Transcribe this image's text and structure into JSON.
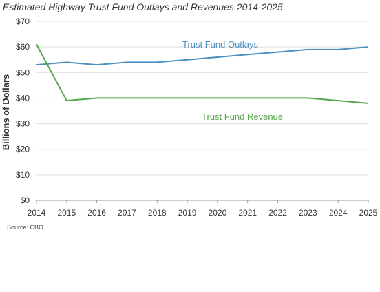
{
  "chart_data": {
    "type": "line",
    "title": "Estimated Highway Trust Fund Outlays and Revenues 2014-2025",
    "xlabel": "",
    "ylabel": "Billions of Dollars",
    "x": [
      2014,
      2015,
      2016,
      2017,
      2018,
      2019,
      2020,
      2021,
      2022,
      2023,
      2024,
      2025
    ],
    "ylim": [
      0,
      70
    ],
    "yticks": [
      "$0",
      "$10",
      "$20",
      "$30",
      "$40",
      "$50",
      "$60",
      "$70"
    ],
    "ytick_values": [
      0,
      10,
      20,
      30,
      40,
      50,
      60,
      70
    ],
    "grid": true,
    "series": [
      {
        "name": "Trust Fund Outlays",
        "color": "#4a8fc0",
        "values": [
          53,
          54,
          53,
          54,
          54,
          55,
          56,
          57,
          58,
          59,
          59,
          60
        ]
      },
      {
        "name": "Trust Fund Revenue",
        "color": "#55a64a",
        "values": [
          61,
          39,
          40,
          40,
          40,
          40,
          40,
          40,
          40,
          40,
          39,
          38
        ]
      }
    ]
  },
  "source": "Source: CBO"
}
